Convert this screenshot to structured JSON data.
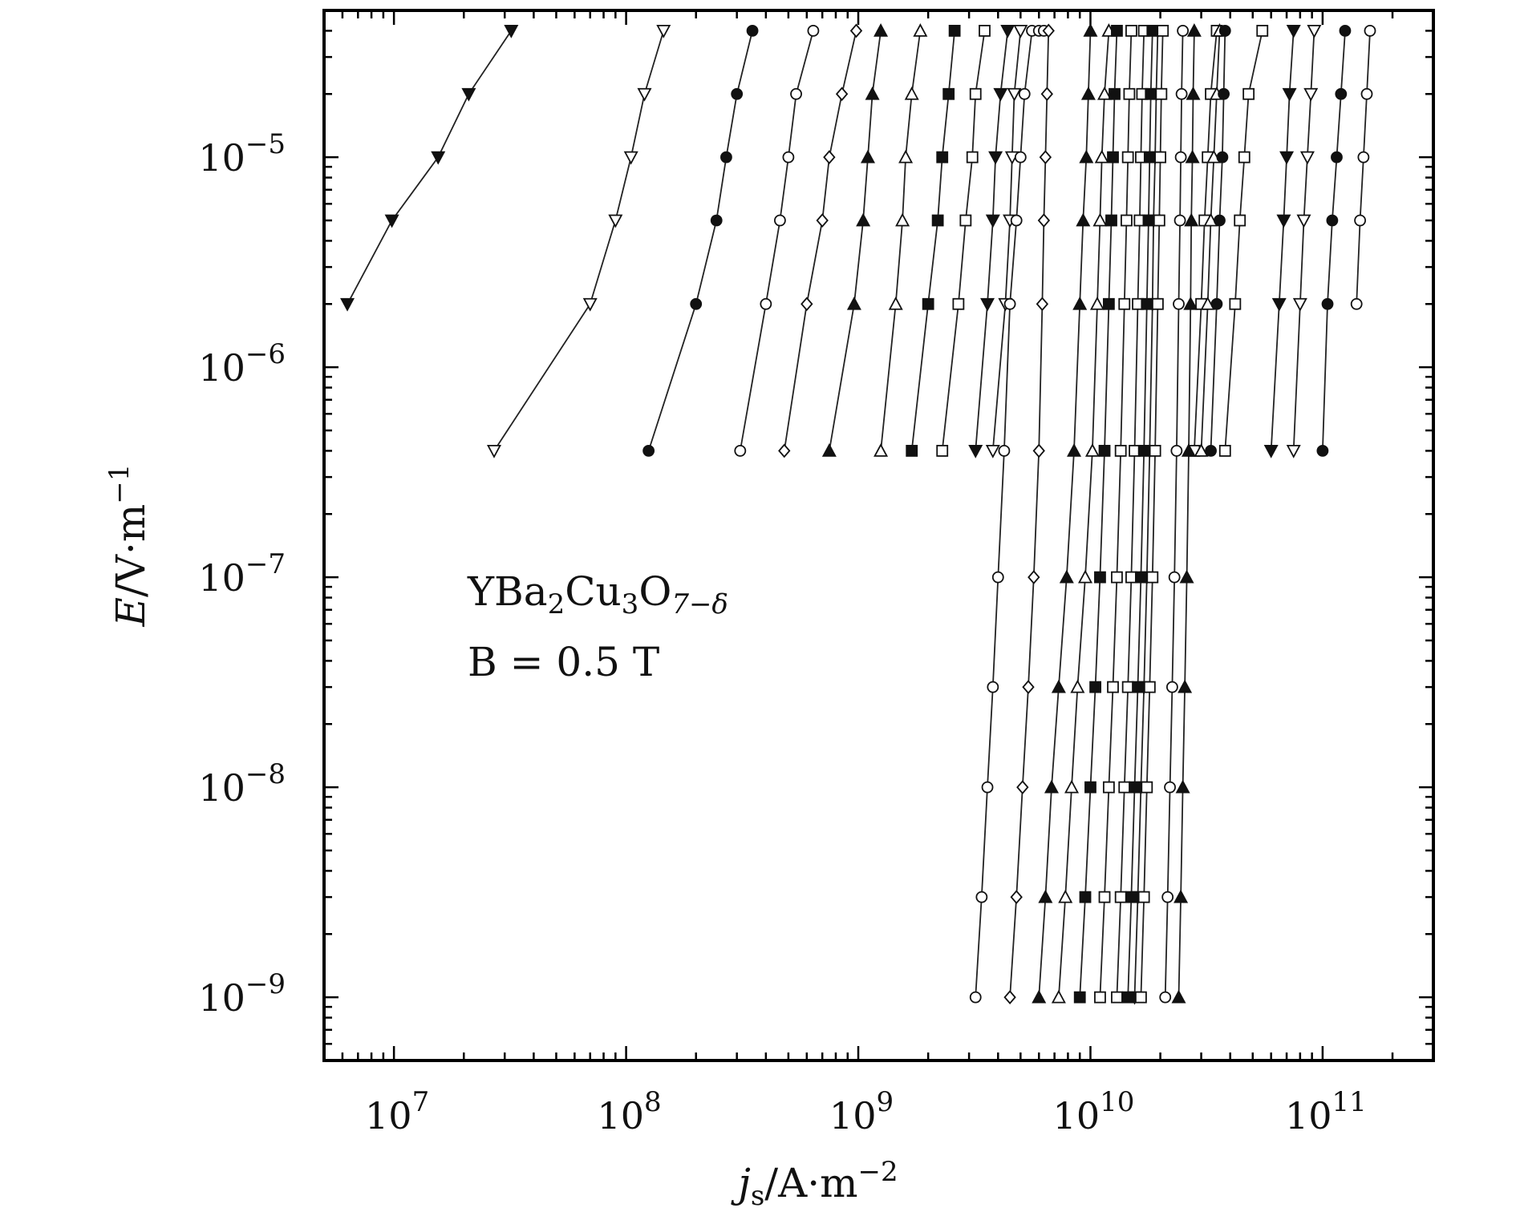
{
  "chart_data": {
    "type": "line",
    "x_scale": "log",
    "y_scale": "log",
    "xlim": [
      5000000.0,
      300000000000.0
    ],
    "ylim": [
      5e-10,
      5e-05
    ],
    "x_ticks": [
      {
        "value": 10000000.0,
        "base": "10",
        "exp": "7"
      },
      {
        "value": 100000000.0,
        "base": "10",
        "exp": "8"
      },
      {
        "value": 1000000000.0,
        "base": "10",
        "exp": "9"
      },
      {
        "value": 10000000000.0,
        "base": "10",
        "exp": "10"
      },
      {
        "value": 100000000000.0,
        "base": "10",
        "exp": "11"
      }
    ],
    "y_ticks": [
      {
        "value": 1e-05,
        "base": "10",
        "exp": "−5"
      },
      {
        "value": 1e-06,
        "base": "10",
        "exp": "−6"
      },
      {
        "value": 1e-07,
        "base": "10",
        "exp": "−7"
      },
      {
        "value": 1e-08,
        "base": "10",
        "exp": "−8"
      },
      {
        "value": 1e-09,
        "base": "10",
        "exp": "−9"
      }
    ],
    "xlabel": {
      "main": "j",
      "sub": "s",
      "rest": "/A·m",
      "sup": "−2"
    },
    "ylabel": {
      "main": "E",
      "rest": "/V·m",
      "sup": "−1"
    },
    "annotation": {
      "material": {
        "p1": "YBa",
        "s1": "2",
        "p2": "Cu",
        "s2": "3",
        "p3": "O",
        "s3": "7−δ"
      },
      "field": "B = 0.5 T"
    },
    "grid": false,
    "legend": "none",
    "series_short": [
      {
        "marker": "tri-down-filled",
        "x": [
          6300000.0,
          9800000.0,
          15500000.0,
          21000000.0,
          32000000.0
        ],
        "y": [
          2e-06,
          5e-06,
          1e-05,
          2e-05,
          4e-05
        ]
      },
      {
        "marker": "tri-down-open",
        "x": [
          27000000.0,
          70000000.0,
          90000000.0,
          105000000.0,
          120000000.0,
          145000000.0
        ],
        "y": [
          4e-07,
          2e-06,
          5e-06,
          1e-05,
          2e-05,
          4e-05
        ]
      },
      {
        "marker": "circle-filled",
        "x": [
          125000000.0,
          200000000.0,
          245000000.0,
          270000000.0,
          300000000.0,
          350000000.0
        ],
        "y": [
          4e-07,
          2e-06,
          5e-06,
          1e-05,
          2e-05,
          4e-05
        ]
      },
      {
        "marker": "circle-open",
        "x": [
          310000000.0,
          400000000.0,
          460000000.0,
          500000000.0,
          540000000.0,
          640000000.0
        ],
        "y": [
          4e-07,
          2e-06,
          5e-06,
          1e-05,
          2e-05,
          4e-05
        ]
      },
      {
        "marker": "diamond-open",
        "x": [
          480000000.0,
          600000000.0,
          700000000.0,
          750000000.0,
          850000000.0,
          980000000.0
        ],
        "y": [
          4e-07,
          2e-06,
          5e-06,
          1e-05,
          2e-05,
          4e-05
        ]
      },
      {
        "marker": "tri-up-filled",
        "x": [
          750000000.0,
          960000000.0,
          1050000000.0,
          1100000000.0,
          1150000000.0,
          1250000000.0
        ],
        "y": [
          4e-07,
          2e-06,
          5e-06,
          1e-05,
          2e-05,
          4e-05
        ]
      },
      {
        "marker": "tri-up-open",
        "x": [
          1250000000.0,
          1450000000.0,
          1550000000.0,
          1600000000.0,
          1700000000.0,
          1850000000.0
        ],
        "y": [
          4e-07,
          2e-06,
          5e-06,
          1e-05,
          2e-05,
          4e-05
        ]
      },
      {
        "marker": "square-filled",
        "x": [
          1700000000.0,
          2000000000.0,
          2200000000.0,
          2300000000.0,
          2450000000.0,
          2600000000.0
        ],
        "y": [
          4e-07,
          2e-06,
          5e-06,
          1e-05,
          2e-05,
          4e-05
        ]
      },
      {
        "marker": "square-open",
        "x": [
          2300000000.0,
          2700000000.0,
          2900000000.0,
          3100000000.0,
          3200000000.0,
          3500000000.0
        ],
        "y": [
          4e-07,
          2e-06,
          5e-06,
          1e-05,
          2e-05,
          4e-05
        ]
      },
      {
        "marker": "tri-down-filled",
        "x": [
          3200000000.0,
          3600000000.0,
          3800000000.0,
          3900000000.0,
          4100000000.0,
          4400000000.0
        ],
        "y": [
          4e-07,
          2e-06,
          5e-06,
          1e-05,
          2e-05,
          4e-05
        ]
      },
      {
        "marker": "tri-down-open",
        "x": [
          3800000000.0,
          4300000000.0,
          4500000000.0,
          4600000000.0,
          4700000000.0,
          5000000000.0
        ],
        "y": [
          4e-07,
          2e-06,
          5e-06,
          1e-05,
          2e-05,
          4e-05
        ]
      },
      {
        "marker": "square-open",
        "x": [
          28000000000.0,
          30000000000.0,
          31000000000.0,
          32000000000.0,
          33000000000.0,
          35000000000.0
        ],
        "y": [
          4e-07,
          2e-06,
          5e-06,
          1e-05,
          2e-05,
          4e-05
        ]
      },
      {
        "marker": "tri-up-open",
        "x": [
          30000000000.0,
          32000000000.0,
          33000000000.0,
          34000000000.0,
          35000000000.0,
          36000000000.0
        ],
        "y": [
          4e-07,
          2e-06,
          5e-06,
          1e-05,
          2e-05,
          4e-05
        ]
      },
      {
        "marker": "circle-filled",
        "x": [
          33000000000.0,
          35000000000.0,
          36000000000.0,
          37000000000.0,
          37500000000.0,
          38000000000.0
        ],
        "y": [
          4e-07,
          2e-06,
          5e-06,
          1e-05,
          2e-05,
          4e-05
        ]
      },
      {
        "marker": "square-open",
        "x": [
          38000000000.0,
          42000000000.0,
          44000000000.0,
          46000000000.0,
          48000000000.0,
          55000000000.0
        ],
        "y": [
          4e-07,
          2e-06,
          5e-06,
          1e-05,
          2e-05,
          4e-05
        ]
      },
      {
        "marker": "tri-down-filled",
        "x": [
          60000000000.0,
          65000000000.0,
          68000000000.0,
          70000000000.0,
          72000000000.0,
          75000000000.0
        ],
        "y": [
          4e-07,
          2e-06,
          5e-06,
          1e-05,
          2e-05,
          4e-05
        ]
      },
      {
        "marker": "tri-down-open",
        "x": [
          75000000000.0,
          80000000000.0,
          83000000000.0,
          86000000000.0,
          89000000000.0,
          92000000000.0
        ],
        "y": [
          4e-07,
          2e-06,
          5e-06,
          1e-05,
          2e-05,
          4e-05
        ]
      },
      {
        "marker": "circle-filled",
        "x": [
          100000000000.0,
          105000000000.0,
          110000000000.0,
          115000000000.0,
          120000000000.0,
          125000000000.0
        ],
        "y": [
          4e-07,
          2e-06,
          5e-06,
          1e-05,
          2e-05,
          4e-05
        ]
      },
      {
        "marker": "circle-open",
        "x": [
          140000000000.0,
          145000000000.0,
          150000000000.0,
          155000000000.0,
          160000000000.0
        ],
        "y": [
          2e-06,
          5e-06,
          1e-05,
          2e-05,
          4e-05
        ]
      }
    ],
    "series_long": [
      {
        "marker": "circle-open",
        "x": [
          3200000000.0,
          3400000000.0,
          3600000000.0,
          3800000000.0,
          4000000000.0,
          4250000000.0,
          4500000000.0,
          4800000000.0,
          5000000000.0,
          5200000000.0,
          5600000000.0,
          6000000000.0,
          6300000000.0
        ],
        "y": [
          1e-09,
          3e-09,
          1e-08,
          3e-08,
          1e-07,
          4e-07,
          2e-06,
          5e-06,
          1e-05,
          2e-05,
          4e-05,
          4e-05,
          4e-05
        ]
      },
      {
        "marker": "diamond-open",
        "x": [
          4500000000.0,
          4800000000.0,
          5100000000.0,
          5400000000.0,
          5700000000.0,
          6000000000.0,
          6200000000.0,
          6300000000.0,
          6400000000.0,
          6500000000.0,
          6600000000.0
        ],
        "y": [
          1e-09,
          3e-09,
          1e-08,
          3e-08,
          1e-07,
          4e-07,
          2e-06,
          5e-06,
          1e-05,
          2e-05,
          4e-05
        ]
      },
      {
        "marker": "tri-up-filled",
        "x": [
          6000000000.0,
          6400000000.0,
          6800000000.0,
          7300000000.0,
          7900000000.0,
          8500000000.0,
          9000000000.0,
          9300000000.0,
          9600000000.0,
          9800000000.0,
          10000000000.0
        ],
        "y": [
          1e-09,
          3e-09,
          1e-08,
          3e-08,
          1e-07,
          4e-07,
          2e-06,
          5e-06,
          1e-05,
          2e-05,
          4e-05
        ]
      },
      {
        "marker": "tri-up-open",
        "x": [
          7300000000.0,
          7800000000.0,
          8300000000.0,
          8800000000.0,
          9500000000.0,
          10200000000.0,
          10700000000.0,
          11000000000.0,
          11200000000.0,
          11500000000.0,
          12000000000.0
        ],
        "y": [
          1e-09,
          3e-09,
          1e-08,
          3e-08,
          1e-07,
          4e-07,
          2e-06,
          5e-06,
          1e-05,
          2e-05,
          4e-05
        ]
      },
      {
        "marker": "square-filled",
        "x": [
          9000000000.0,
          9500000000.0,
          10000000000.0,
          10500000000.0,
          11000000000.0,
          11500000000.0,
          12000000000.0,
          12300000000.0,
          12500000000.0,
          12700000000.0,
          13000000000.0
        ],
        "y": [
          1e-09,
          3e-09,
          1e-08,
          3e-08,
          1e-07,
          4e-07,
          2e-06,
          5e-06,
          1e-05,
          2e-05,
          4e-05
        ]
      },
      {
        "marker": "square-open",
        "x": [
          11000000000.0,
          11500000000.0,
          12000000000.0,
          12500000000.0,
          13000000000.0,
          13500000000.0,
          14000000000.0,
          14300000000.0,
          14500000000.0,
          14700000000.0,
          15000000000.0
        ],
        "y": [
          1e-09,
          3e-09,
          1e-08,
          3e-08,
          1e-07,
          4e-07,
          2e-06,
          5e-06,
          1e-05,
          2e-05,
          4e-05
        ]
      },
      {
        "marker": "square-open",
        "x": [
          13000000000.0,
          13500000000.0,
          14000000000.0,
          14500000000.0,
          15000000000.0,
          15500000000.0,
          16000000000.0,
          16300000000.0,
          16500000000.0,
          16700000000.0,
          17000000000.0
        ],
        "y": [
          1e-09,
          3e-09,
          1e-08,
          3e-08,
          1e-07,
          4e-07,
          2e-06,
          5e-06,
          1e-05,
          2e-05,
          4e-05
        ]
      },
      {
        "marker": "square-filled",
        "x": [
          14500000000.0,
          15000000000.0,
          15500000000.0,
          16000000000.0,
          16500000000.0,
          17000000000.0,
          17500000000.0,
          17800000000.0,
          18000000000.0,
          18200000000.0,
          18500000000.0
        ],
        "y": [
          1e-09,
          3e-09,
          1e-08,
          3e-08,
          1e-07,
          4e-07,
          2e-06,
          5e-06,
          1e-05,
          2e-05,
          4e-05
        ]
      },
      {
        "marker": "tri-down-filled",
        "x": [
          15500000000.0,
          16000000000.0,
          16500000000.0,
          17000000000.0,
          17500000000.0,
          18000000000.0,
          18500000000.0,
          18700000000.0,
          19000000000.0,
          19200000000.0,
          19500000000.0
        ],
        "y": [
          1e-09,
          3e-09,
          1e-08,
          3e-08,
          1e-07,
          4e-07,
          2e-06,
          5e-06,
          1e-05,
          2e-05,
          4e-05
        ]
      },
      {
        "marker": "square-open",
        "x": [
          16500000000.0,
          17000000000.0,
          17500000000.0,
          18000000000.0,
          18500000000.0,
          19000000000.0,
          19500000000.0,
          19800000000.0,
          20000000000.0,
          20200000000.0,
          20500000000.0
        ],
        "y": [
          1e-09,
          3e-09,
          1e-08,
          3e-08,
          1e-07,
          4e-07,
          2e-06,
          5e-06,
          1e-05,
          2e-05,
          4e-05
        ]
      },
      {
        "marker": "circle-open",
        "x": [
          21000000000.0,
          21500000000.0,
          22000000000.0,
          22500000000.0,
          23000000000.0,
          23500000000.0,
          24000000000.0,
          24300000000.0,
          24500000000.0,
          24700000000.0,
          25000000000.0
        ],
        "y": [
          1e-09,
          3e-09,
          1e-08,
          3e-08,
          1e-07,
          4e-07,
          2e-06,
          5e-06,
          1e-05,
          2e-05,
          4e-05
        ]
      },
      {
        "marker": "tri-up-filled",
        "x": [
          24000000000.0,
          24500000000.0,
          25000000000.0,
          25500000000.0,
          26000000000.0,
          26500000000.0,
          27000000000.0,
          27200000000.0,
          27500000000.0,
          27700000000.0,
          28000000000.0
        ],
        "y": [
          1e-09,
          3e-09,
          1e-08,
          3e-08,
          1e-07,
          4e-07,
          2e-06,
          5e-06,
          1e-05,
          2e-05,
          4e-05
        ]
      }
    ]
  }
}
